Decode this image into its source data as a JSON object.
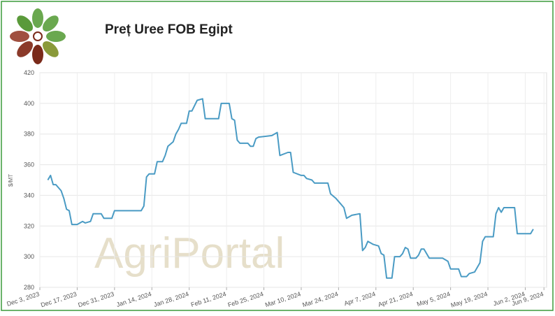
{
  "chart_data": {
    "type": "line",
    "title": "Preț Uree FOB Egipt",
    "y_label": "$/MT",
    "watermark": "AgriPortal",
    "x": [
      "2023-12-06",
      "2023-12-07",
      "2023-12-08",
      "2023-12-09",
      "2023-12-10",
      "2023-12-11",
      "2023-12-12",
      "2023-12-13",
      "2023-12-14",
      "2023-12-15",
      "2023-12-17",
      "2023-12-19",
      "2023-12-20",
      "2023-12-22",
      "2023-12-23",
      "2023-12-26",
      "2023-12-27",
      "2023-12-30",
      "2023-12-31",
      "2024-01-10",
      "2024-01-11",
      "2024-01-12",
      "2024-01-13",
      "2024-01-15",
      "2024-01-16",
      "2024-01-18",
      "2024-01-19",
      "2024-01-20",
      "2024-01-22",
      "2024-01-23",
      "2024-01-24",
      "2024-01-25",
      "2024-01-27",
      "2024-01-28",
      "2024-01-29",
      "2024-01-31",
      "2024-02-02",
      "2024-02-03",
      "2024-02-08",
      "2024-02-09",
      "2024-02-12",
      "2024-02-13",
      "2024-02-14",
      "2024-02-15",
      "2024-02-16",
      "2024-02-19",
      "2024-02-20",
      "2024-02-21",
      "2024-02-22",
      "2024-02-23",
      "2024-02-28",
      "2024-03-01",
      "2024-03-02",
      "2024-03-05",
      "2024-03-06",
      "2024-03-07",
      "2024-03-10",
      "2024-03-11",
      "2024-03-12",
      "2024-03-14",
      "2024-03-15",
      "2024-03-20",
      "2024-03-21",
      "2024-03-23",
      "2024-03-24",
      "2024-03-26",
      "2024-03-27",
      "2024-03-29",
      "2024-04-01",
      "2024-04-02",
      "2024-04-03",
      "2024-04-04",
      "2024-04-06",
      "2024-04-08",
      "2024-04-09",
      "2024-04-10",
      "2024-04-11",
      "2024-04-13",
      "2024-04-14",
      "2024-04-16",
      "2024-04-17",
      "2024-04-18",
      "2024-04-19",
      "2024-04-20",
      "2024-04-22",
      "2024-04-23",
      "2024-04-24",
      "2024-04-25",
      "2024-04-27",
      "2024-05-02",
      "2024-05-04",
      "2024-05-05",
      "2024-05-08",
      "2024-05-09",
      "2024-05-11",
      "2024-05-12",
      "2024-05-14",
      "2024-05-15",
      "2024-05-16",
      "2024-05-17",
      "2024-05-18",
      "2024-05-21",
      "2024-05-22",
      "2024-05-23",
      "2024-05-24",
      "2024-05-25",
      "2024-05-29",
      "2024-05-30",
      "2024-06-04",
      "2024-06-05"
    ],
    "series": [
      {
        "name": "Uree FOB Egipt",
        "color": "#4a9bc4",
        "values": [
          350,
          353,
          347,
          347,
          345,
          343,
          338,
          331,
          330,
          321,
          321,
          323,
          322,
          323,
          328,
          328,
          325,
          325,
          330,
          330,
          333,
          352,
          354,
          354,
          362,
          362,
          366,
          372,
          375,
          380,
          383,
          387,
          387,
          395,
          395,
          402,
          403,
          390,
          390,
          400,
          400,
          390,
          389,
          376,
          374,
          374,
          372,
          372,
          377,
          378,
          379,
          381,
          366,
          368,
          368,
          355,
          353,
          353,
          351,
          350,
          348,
          348,
          341,
          338,
          336,
          332,
          325,
          327,
          328,
          304,
          306,
          310,
          308,
          307,
          302,
          301,
          286,
          286,
          300,
          300,
          302,
          306,
          305,
          299,
          299,
          301,
          305,
          305,
          299,
          299,
          297,
          292,
          292,
          287,
          287,
          289,
          290,
          293,
          296,
          310,
          313,
          313,
          328,
          332,
          329,
          332,
          332,
          315,
          315,
          318
        ]
      }
    ],
    "xlim": [
      "2023-12-03",
      "2024-06-10"
    ],
    "xticks": [
      {
        "value": "2023-12-03",
        "label": "Dec 3, 2023"
      },
      {
        "value": "2023-12-17",
        "label": "Dec 17, 2023"
      },
      {
        "value": "2023-12-31",
        "label": "Dec 31, 2023"
      },
      {
        "value": "2024-01-14",
        "label": "Jan 14, 2024"
      },
      {
        "value": "2024-01-28",
        "label": "Jan 28, 2024"
      },
      {
        "value": "2024-02-11",
        "label": "Feb 11, 2024"
      },
      {
        "value": "2024-02-25",
        "label": "Feb 25, 2024"
      },
      {
        "value": "2024-03-10",
        "label": "Mar 10, 2024"
      },
      {
        "value": "2024-03-24",
        "label": "Mar 24, 2024"
      },
      {
        "value": "2024-04-07",
        "label": "Apr 7, 2024"
      },
      {
        "value": "2024-04-21",
        "label": "Apr 21, 2024"
      },
      {
        "value": "2024-05-05",
        "label": "May 5, 2024"
      },
      {
        "value": "2024-05-19",
        "label": "May 19, 2024"
      },
      {
        "value": "2024-06-02",
        "label": "Jun 2, 2024"
      },
      {
        "value": "2024-06-09",
        "label": "Jun 9, 2024"
      }
    ],
    "ylim": [
      280,
      420
    ],
    "yticks": [
      280,
      300,
      320,
      340,
      360,
      380,
      400,
      420
    ],
    "grid": true
  }
}
